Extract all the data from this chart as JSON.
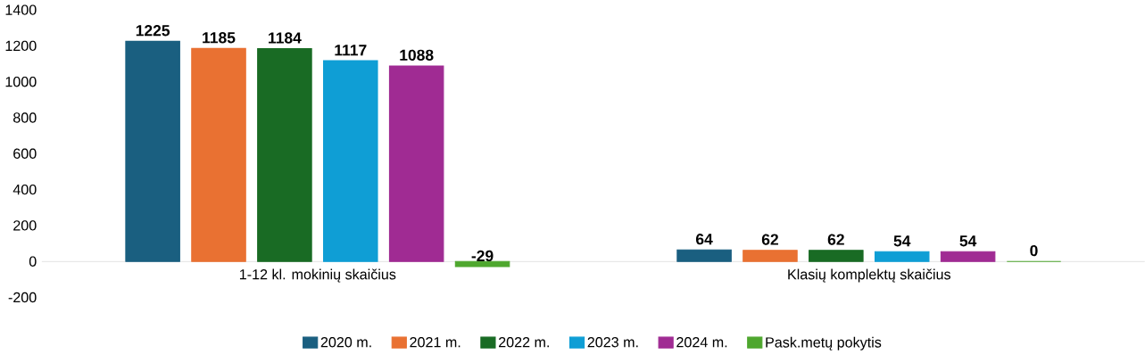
{
  "chart_data": {
    "type": "bar",
    "categories": [
      "1-12 kl. mokinių skaičius",
      "Klasių komplektų skaičius"
    ],
    "series": [
      {
        "name": "2020 m.",
        "color": "#1a5f80",
        "values": [
          1225,
          64
        ]
      },
      {
        "name": "2021 m.",
        "color": "#e97132",
        "values": [
          1185,
          62
        ]
      },
      {
        "name": "2022 m.",
        "color": "#196b24",
        "values": [
          1184,
          62
        ]
      },
      {
        "name": "2023 m.",
        "color": "#0f9ed5",
        "values": [
          1117,
          54
        ]
      },
      {
        "name": "2024 m.",
        "color": "#a02b93",
        "values": [
          1088,
          54
        ]
      },
      {
        "name": "Pask.metų pokytis",
        "color": "#4ea72e",
        "values": [
          -29,
          0
        ]
      }
    ],
    "ylim": [
      -200,
      1400
    ],
    "yticks": [
      -200,
      0,
      200,
      400,
      600,
      800,
      1000,
      1200,
      1400
    ],
    "data_labels": true,
    "legend": "bottom"
  }
}
